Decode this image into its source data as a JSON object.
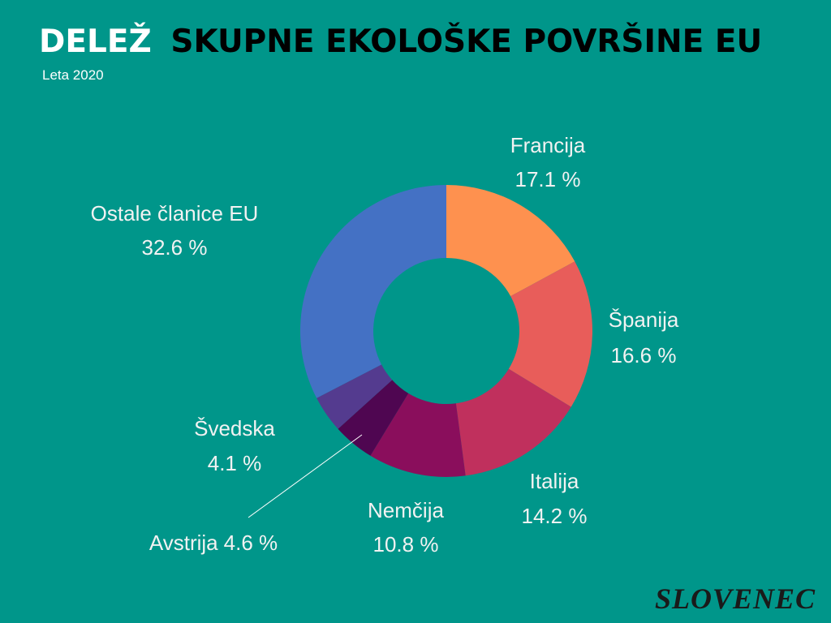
{
  "chart_data": {
    "type": "donut",
    "title_highlight": "DELEŽ",
    "title": "SKUPNE EKOLOŠKE POVRŠINE EU",
    "subtitle": "Leta 2020",
    "categories": [
      "Francija",
      "Španija",
      "Italija",
      "Nemčija",
      "Avstrija",
      "Švedska",
      "Ostale članice EU"
    ],
    "values": [
      17.1,
      16.6,
      14.2,
      10.8,
      4.6,
      4.1,
      32.6
    ],
    "value_labels": [
      "17.1 %",
      "16.6 %",
      "14.2 %",
      "10.8 %",
      "4.6 %",
      "4.1 %",
      "32.6 %"
    ],
    "colors": [
      "#fe914f",
      "#e85d5a",
      "#c0305d",
      "#8a0e5c",
      "#4f0651",
      "#543b8f",
      "#4471c4"
    ]
  },
  "logo": "SLOVENEC"
}
